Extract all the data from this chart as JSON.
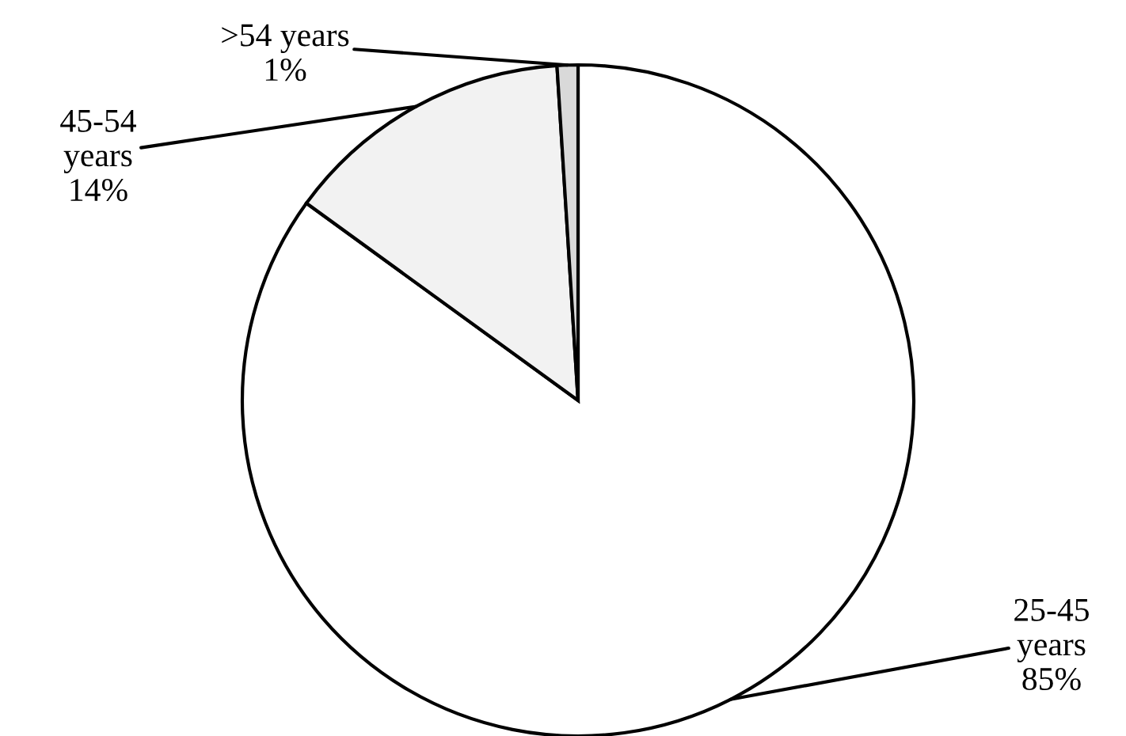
{
  "chart_data": {
    "type": "pie",
    "categories": [
      "25-45\nyears",
      "45-54\nyears",
      ">54 years"
    ],
    "values": [
      85,
      14,
      1
    ],
    "value_labels": [
      "85%",
      "14%",
      "1%"
    ],
    "colors": [
      "#ffffff",
      "#f2f2f2",
      "#d9d9d9"
    ]
  }
}
